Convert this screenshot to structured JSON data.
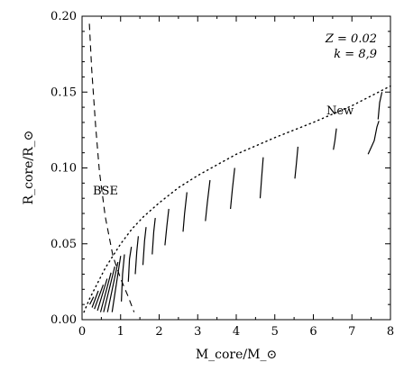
{
  "chart_data": {
    "type": "line",
    "title": "",
    "xlabel": "M_core/M_⊙",
    "ylabel": "R_core/R_⊙",
    "xlim": [
      0,
      8
    ],
    "ylim": [
      0,
      0.2
    ],
    "xticks": [
      0,
      1,
      2,
      3,
      4,
      5,
      6,
      7,
      8
    ],
    "yticks": [
      0.0,
      0.05,
      0.1,
      0.15,
      0.2
    ],
    "xtick_labels": [
      "0",
      "1",
      "2",
      "3",
      "4",
      "5",
      "6",
      "7",
      "8"
    ],
    "ytick_labels": [
      "0.00",
      "0.05",
      "0.10",
      "0.15",
      "0.20"
    ],
    "annotations": {
      "z_label": "Z = 0.02",
      "k_label": "k = 8,9",
      "bse_label": "BSE",
      "new_label": "New"
    },
    "grid": false,
    "series": [
      {
        "name": "BSE",
        "style": "dashed",
        "points": [
          [
            0.19,
            0.195
          ],
          [
            0.25,
            0.165
          ],
          [
            0.35,
            0.128
          ],
          [
            0.45,
            0.098
          ],
          [
            0.6,
            0.068
          ],
          [
            0.8,
            0.042
          ],
          [
            1.0,
            0.027
          ],
          [
            1.2,
            0.015
          ],
          [
            1.35,
            0.005
          ]
        ]
      },
      {
        "name": "New",
        "style": "dotted",
        "points": [
          [
            0.05,
            0.005
          ],
          [
            0.2,
            0.014
          ],
          [
            0.4,
            0.024
          ],
          [
            0.6,
            0.034
          ],
          [
            0.8,
            0.042
          ],
          [
            1.0,
            0.05
          ],
          [
            1.3,
            0.06
          ],
          [
            1.6,
            0.068
          ],
          [
            2.0,
            0.077
          ],
          [
            2.5,
            0.087
          ],
          [
            3.0,
            0.095
          ],
          [
            3.5,
            0.102
          ],
          [
            4.0,
            0.109
          ],
          [
            5.0,
            0.12
          ],
          [
            6.0,
            0.13
          ],
          [
            7.0,
            0.141
          ],
          [
            8.0,
            0.154
          ]
        ]
      },
      {
        "name": "",
        "style": "solid",
        "segments": [
          [
            [
              0.2,
              0.01
            ],
            [
              0.3,
              0.015
            ]
          ],
          [
            [
              0.26,
              0.008
            ],
            [
              0.42,
              0.019
            ]
          ],
          [
            [
              0.32,
              0.007
            ],
            [
              0.55,
              0.023
            ]
          ],
          [
            [
              0.4,
              0.006
            ],
            [
              0.65,
              0.027
            ]
          ],
          [
            [
              0.48,
              0.005
            ],
            [
              0.75,
              0.031
            ]
          ],
          [
            [
              0.56,
              0.005
            ],
            [
              0.85,
              0.035
            ]
          ],
          [
            [
              0.66,
              0.005
            ],
            [
              0.93,
              0.038
            ]
          ],
          [
            [
              0.78,
              0.005
            ],
            [
              1.0,
              0.042
            ]
          ],
          [
            [
              1.02,
              0.012
            ],
            [
              1.05,
              0.03
            ],
            [
              1.1,
              0.043
            ]
          ],
          [
            [
              1.2,
              0.025
            ],
            [
              1.23,
              0.04
            ],
            [
              1.28,
              0.048
            ]
          ],
          [
            [
              1.38,
              0.03
            ],
            [
              1.42,
              0.045
            ],
            [
              1.46,
              0.055
            ]
          ],
          [
            [
              1.58,
              0.036
            ],
            [
              1.62,
              0.052
            ],
            [
              1.66,
              0.061
            ]
          ],
          [
            [
              1.82,
              0.043
            ],
            [
              1.86,
              0.058
            ],
            [
              1.9,
              0.067
            ]
          ],
          [
            [
              2.15,
              0.049
            ],
            [
              2.2,
              0.062
            ],
            [
              2.25,
              0.073
            ]
          ],
          [
            [
              2.62,
              0.058
            ],
            [
              2.66,
              0.07
            ],
            [
              2.72,
              0.084
            ]
          ],
          [
            [
              3.2,
              0.065
            ],
            [
              3.25,
              0.077
            ],
            [
              3.32,
              0.092
            ]
          ],
          [
            [
              3.85,
              0.073
            ],
            [
              3.9,
              0.086
            ],
            [
              3.96,
              0.1
            ]
          ],
          [
            [
              4.62,
              0.08
            ],
            [
              4.66,
              0.094
            ],
            [
              4.7,
              0.107
            ]
          ],
          [
            [
              5.52,
              0.093
            ],
            [
              5.56,
              0.103
            ],
            [
              5.6,
              0.114
            ]
          ],
          [
            [
              6.52,
              0.112
            ],
            [
              6.56,
              0.118
            ],
            [
              6.6,
              0.126
            ]
          ],
          [
            [
              7.42,
              0.109
            ],
            [
              7.58,
              0.118
            ],
            [
              7.65,
              0.127
            ],
            [
              7.7,
              0.131
            ]
          ],
          [
            [
              7.68,
              0.132
            ],
            [
              7.72,
              0.143
            ],
            [
              7.78,
              0.15
            ]
          ]
        ]
      }
    ]
  }
}
